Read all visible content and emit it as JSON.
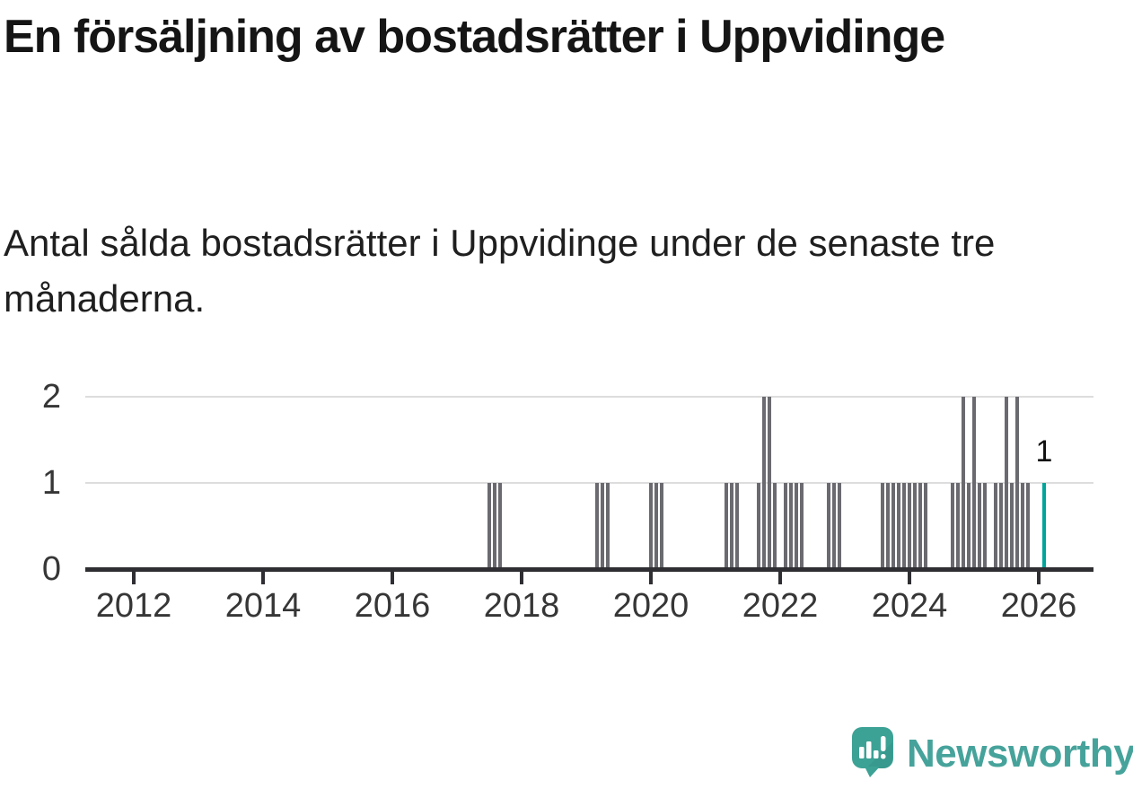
{
  "title": "En försäljning av bostadsrätter i Uppvidinge",
  "subtitle": "Antal sålda bostadsrätter i Uppvidinge under de senaste tre månaderna.",
  "chart_data": {
    "type": "bar",
    "title": "En försäljning av bostadsrätter i Uppvidinge",
    "subtitle": "Antal sålda bostadsrätter i Uppvidinge under de senaste tre månaderna.",
    "xlabel": "",
    "ylabel": "",
    "grid": "horizontal",
    "x_tick_years": [
      "2012",
      "2014",
      "2016",
      "2018",
      "2020",
      "2022",
      "2024",
      "2026"
    ],
    "y_ticks": [
      "0",
      "1",
      "2"
    ],
    "ylim": [
      0,
      2
    ],
    "bar_color": "#6a6a70",
    "highlight_color": "#00a59a",
    "grid_color": "#dddddd",
    "axis_color": "#2f2f33",
    "annotation": {
      "text": "1",
      "month": "2026-02"
    },
    "series": [
      {
        "month": "2017-07",
        "value": 1
      },
      {
        "month": "2017-08",
        "value": 1
      },
      {
        "month": "2017-09",
        "value": 1
      },
      {
        "month": "2019-03",
        "value": 1
      },
      {
        "month": "2019-04",
        "value": 1
      },
      {
        "month": "2019-05",
        "value": 1
      },
      {
        "month": "2020-01",
        "value": 1
      },
      {
        "month": "2020-02",
        "value": 1
      },
      {
        "month": "2020-03",
        "value": 1
      },
      {
        "month": "2021-03",
        "value": 1
      },
      {
        "month": "2021-04",
        "value": 1
      },
      {
        "month": "2021-05",
        "value": 1
      },
      {
        "month": "2021-09",
        "value": 1
      },
      {
        "month": "2021-10",
        "value": 2
      },
      {
        "month": "2021-11",
        "value": 2
      },
      {
        "month": "2021-12",
        "value": 1
      },
      {
        "month": "2022-02",
        "value": 1
      },
      {
        "month": "2022-03",
        "value": 1
      },
      {
        "month": "2022-04",
        "value": 1
      },
      {
        "month": "2022-05",
        "value": 1
      },
      {
        "month": "2022-10",
        "value": 1
      },
      {
        "month": "2022-11",
        "value": 1
      },
      {
        "month": "2022-12",
        "value": 1
      },
      {
        "month": "2023-08",
        "value": 1
      },
      {
        "month": "2023-09",
        "value": 1
      },
      {
        "month": "2023-10",
        "value": 1
      },
      {
        "month": "2023-11",
        "value": 1
      },
      {
        "month": "2023-12",
        "value": 1
      },
      {
        "month": "2024-01",
        "value": 1
      },
      {
        "month": "2024-02",
        "value": 1
      },
      {
        "month": "2024-03",
        "value": 1
      },
      {
        "month": "2024-04",
        "value": 1
      },
      {
        "month": "2024-09",
        "value": 1
      },
      {
        "month": "2024-10",
        "value": 1
      },
      {
        "month": "2024-11",
        "value": 2
      },
      {
        "month": "2024-12",
        "value": 1
      },
      {
        "month": "2025-01",
        "value": 2
      },
      {
        "month": "2025-02",
        "value": 1
      },
      {
        "month": "2025-03",
        "value": 1
      },
      {
        "month": "2025-05",
        "value": 1
      },
      {
        "month": "2025-06",
        "value": 1
      },
      {
        "month": "2025-07",
        "value": 2
      },
      {
        "month": "2025-08",
        "value": 1
      },
      {
        "month": "2025-09",
        "value": 2
      },
      {
        "month": "2025-10",
        "value": 1
      },
      {
        "month": "2025-11",
        "value": 1
      },
      {
        "month": "2026-02",
        "value": 1,
        "highlight": true
      }
    ]
  },
  "logo": {
    "text": "Newsworthy",
    "text_color": "#46a39b",
    "icon_color": "#3ca295",
    "icon_name": "newsworthy-speech-bubble-chart-icon"
  }
}
